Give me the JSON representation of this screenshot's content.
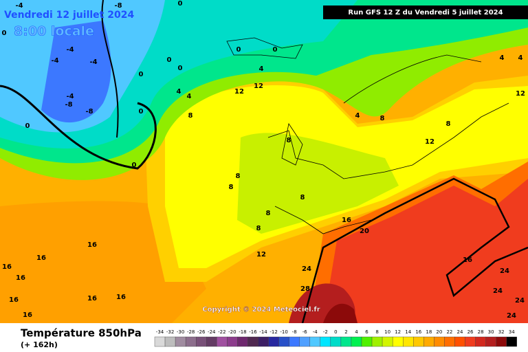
{
  "header": {
    "date": "Vendredi 12 juillet 2024",
    "time": "8:00 locale",
    "run": "Run GFS 12 Z du Vendredi 5 juillet 2024",
    "copyright": "Copyright © 2024 Meteociel.fr"
  },
  "map": {
    "labels": [
      "-4",
      "-8",
      "0",
      "0",
      "-4",
      "-4",
      "-4",
      "-4",
      "-8",
      "-8",
      "0",
      "0",
      "0",
      "0",
      "0",
      "0",
      "0",
      "0",
      "4",
      "4",
      "4",
      "8",
      "12",
      "12",
      "4",
      "4",
      "12",
      "4",
      "8",
      "8",
      "12",
      "8",
      "8",
      "8",
      "8",
      "8",
      "8",
      "16",
      "20",
      "12",
      "16",
      "16",
      "16",
      "16",
      "16",
      "16",
      "16",
      "16",
      "24",
      "28",
      "16",
      "24",
      "24",
      "24",
      "24"
    ]
  },
  "footer": {
    "title": "Température 850hPa",
    "lead": "(+ 162h)"
  },
  "legend": {
    "ticks": [
      -34,
      -32,
      -30,
      -28,
      -26,
      -24,
      -22,
      -20,
      -18,
      -16,
      -14,
      -12,
      -10,
      -8,
      -6,
      -4,
      -2,
      0,
      2,
      4,
      6,
      8,
      10,
      12,
      14,
      16,
      18,
      20,
      22,
      24,
      26,
      28,
      30,
      32,
      34
    ],
    "colors": [
      "#d9d9d9",
      "#bdbdbd",
      "#a08ca0",
      "#8c6e8c",
      "#785078",
      "#643c64",
      "#a050a0",
      "#8c3c8c",
      "#6e286e",
      "#502850",
      "#3c1e64",
      "#2828a0",
      "#2850c8",
      "#3c78ff",
      "#50a0ff",
      "#50c8ff",
      "#00e6ff",
      "#00dcc8",
      "#00e68c",
      "#00f050",
      "#50f000",
      "#a0f000",
      "#d2f500",
      "#ffff00",
      "#ffe600",
      "#ffc800",
      "#ffaa00",
      "#ff8c00",
      "#ff6e00",
      "#ff5000",
      "#f03c1e",
      "#d2281e",
      "#b41e1e",
      "#8c0a0a",
      "#000000"
    ]
  }
}
